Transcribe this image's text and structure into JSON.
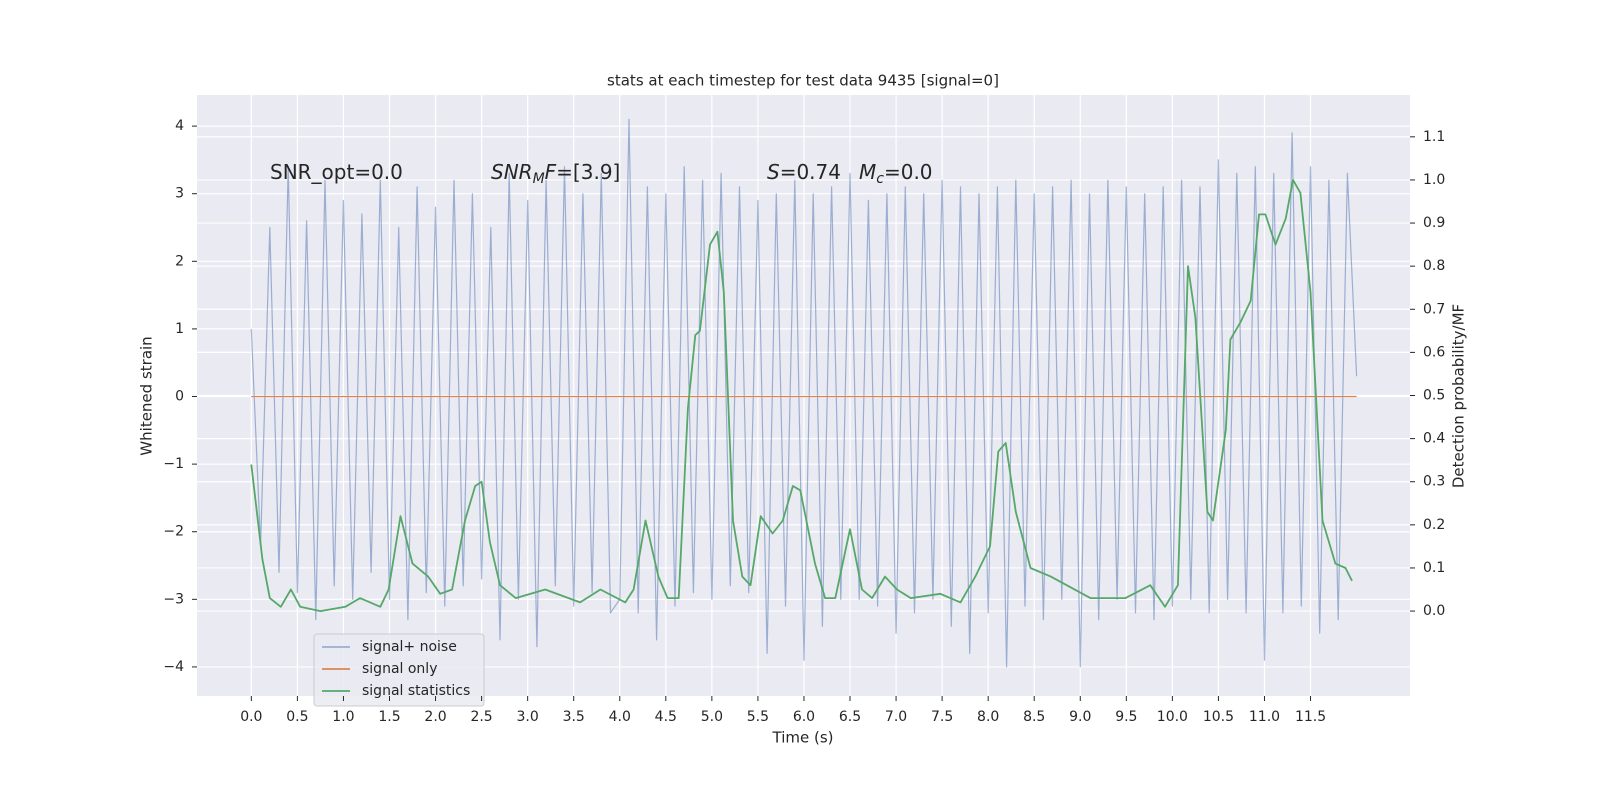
{
  "chart_data": {
    "type": "line",
    "title": "stats at each timestep for test data 9435 [signal=0]",
    "xlabel": "Time (s)",
    "ylabel": "Whitened strain",
    "y2label": "Detection probability/MF",
    "annotations": [
      [
        {
          "text": "SNR_opt=0.0"
        }
      ],
      [
        {
          "text": "SNR",
          "italic": true
        },
        {
          "text": "M",
          "italic": true,
          "sub": true
        },
        {
          "text": "F",
          "italic": true
        },
        {
          "text": "=[3.9]"
        }
      ],
      [
        {
          "text": "S",
          "italic": true
        },
        {
          "text": "=0.74"
        }
      ],
      [
        {
          "text": "M",
          "italic": true
        },
        {
          "text": "c",
          "italic": true,
          "sub": true
        },
        {
          "text": "=0.0"
        }
      ]
    ],
    "xlim": [
      -0.59,
      12.58
    ],
    "ylim": [
      -4.43,
      4.46
    ],
    "y2lim": [
      -0.197,
      1.197
    ],
    "xticks": [
      {
        "value": 0,
        "label": "0.0"
      },
      0.5,
      {
        "value": 1,
        "label": "1.0"
      },
      1.5,
      {
        "value": 2,
        "label": "2.0"
      },
      2.5,
      {
        "value": 3,
        "label": "3.0"
      },
      3.5,
      {
        "value": 4,
        "label": "4.0"
      },
      4.5,
      {
        "value": 5,
        "label": "5.0"
      },
      5.5,
      {
        "value": 6,
        "label": "6.0"
      },
      6.5,
      {
        "value": 7,
        "label": "7.0"
      },
      7.5,
      {
        "value": 8,
        "label": "8.0"
      },
      8.5,
      {
        "value": 9,
        "label": "9.0"
      },
      9.5,
      {
        "value": 10,
        "label": "10.0"
      },
      10.5,
      {
        "value": 11,
        "label": "11.0"
      },
      11.5
    ],
    "yticks": [
      {
        "value": -4,
        "label": "−4"
      },
      {
        "value": -3,
        "label": "−3"
      },
      {
        "value": -2,
        "label": "−2"
      },
      {
        "value": -1,
        "label": "−1"
      },
      0,
      1,
      2,
      3,
      4
    ],
    "y2ticks": [
      {
        "value": 0,
        "label": "0.0"
      },
      0.1,
      0.2,
      0.3,
      0.4,
      0.5,
      0.6,
      0.7,
      0.8,
      0.9,
      {
        "value": 1,
        "label": "1.0"
      },
      1.1
    ],
    "grid": true,
    "legend": "lower left",
    "series": [
      {
        "name": "signal+ noise",
        "color": "#4c72b0",
        "opacity": 0.5,
        "x": [
          0,
          0.1,
          0.2,
          0.3,
          0.4,
          0.5,
          0.6,
          0.7,
          0.8,
          0.9,
          1,
          1.1,
          1.2,
          1.3,
          1.4,
          1.5,
          1.6,
          1.7,
          1.8,
          1.9,
          2,
          2.1,
          2.2,
          2.3,
          2.4,
          2.5,
          2.6,
          2.7,
          2.8,
          2.9,
          3,
          3.1,
          3.2,
          3.3,
          3.4,
          3.5,
          3.6,
          3.7,
          3.8,
          3.9,
          4,
          4.1,
          4.2,
          4.3,
          4.4,
          4.5,
          4.6,
          4.7,
          4.8,
          4.9,
          5,
          5.1,
          5.2,
          5.3,
          5.4,
          5.5,
          5.6,
          5.7,
          5.8,
          5.9,
          6,
          6.1,
          6.2,
          6.3,
          6.4,
          6.5,
          6.6,
          6.7,
          6.8,
          6.9,
          7,
          7.1,
          7.2,
          7.3,
          7.4,
          7.5,
          7.6,
          7.7,
          7.8,
          7.9,
          8,
          8.1,
          8.2,
          8.3,
          8.4,
          8.5,
          8.6,
          8.7,
          8.8,
          8.9,
          9,
          9.1,
          9.2,
          9.3,
          9.4,
          9.5,
          9.6,
          9.7,
          9.8,
          9.9,
          10,
          10.1,
          10.2,
          10.3,
          10.4,
          10.5,
          10.6,
          10.7,
          10.8,
          10.9,
          11,
          11.1,
          11.2,
          11.3,
          11.4,
          11.5,
          11.6,
          11.7,
          11.8,
          11.9,
          12
        ],
        "values": [
          1.0,
          -2.2,
          2.5,
          -2.6,
          3.4,
          -2.9,
          2.6,
          -3.3,
          3.2,
          -2.8,
          2.9,
          -3.0,
          2.7,
          -2.6,
          3.2,
          -3.0,
          2.5,
          -3.3,
          3.1,
          -2.9,
          2.8,
          -3.1,
          3.2,
          -2.8,
          3.0,
          -2.7,
          2.5,
          -3.6,
          3.3,
          -3.0,
          2.9,
          -3.7,
          3.2,
          -2.8,
          3.4,
          -3.1,
          3.0,
          -2.9,
          3.3,
          -3.2,
          -3.0,
          4.1,
          -3.2,
          3.1,
          -3.6,
          3.0,
          -3.1,
          3.4,
          -2.9,
          3.2,
          -3.0,
          3.3,
          -2.8,
          3.1,
          -2.9,
          2.9,
          -3.8,
          3.0,
          -3.1,
          3.2,
          -3.9,
          3.0,
          -3.4,
          3.1,
          -3.0,
          3.3,
          -3.0,
          2.9,
          -3.1,
          3.0,
          -3.5,
          3.1,
          -3.2,
          3.0,
          -3.0,
          3.2,
          -3.4,
          3.1,
          -3.8,
          3.0,
          -3.2,
          3.1,
          -4.0,
          3.2,
          -3.1,
          3.0,
          -3.3,
          3.1,
          -3.0,
          3.2,
          -4.0,
          3.0,
          -3.3,
          3.2,
          -3.0,
          3.1,
          -3.2,
          3.0,
          -3.3,
          3.1,
          -3.1,
          3.2,
          -3.0,
          3.1,
          -3.2,
          3.5,
          -3.0,
          3.3,
          -3.2,
          3.4,
          -3.9,
          3.3,
          -3.2,
          3.9,
          -3.1,
          3.4,
          -3.5,
          3.2,
          -3.3,
          3.3,
          0.3
        ]
      },
      {
        "name": "signal only",
        "color": "#dd8452",
        "x": [
          0,
          12
        ],
        "values": [
          0,
          0
        ]
      },
      {
        "name": "signal statistics",
        "color": "#55a868",
        "axis": "y2",
        "x": [
          0,
          0.12,
          0.2,
          0.32,
          0.43,
          0.53,
          0.75,
          1.02,
          1.18,
          1.4,
          1.49,
          1.62,
          1.75,
          1.92,
          2.05,
          2.18,
          2.32,
          2.43,
          2.5,
          2.59,
          2.7,
          2.87,
          3.19,
          3.57,
          3.79,
          4.06,
          4.15,
          4.28,
          4.42,
          4.52,
          4.64,
          4.74,
          4.82,
          4.87,
          4.98,
          5.06,
          5.13,
          5.23,
          5.33,
          5.42,
          5.53,
          5.66,
          5.77,
          5.88,
          5.96,
          6.12,
          6.23,
          6.34,
          6.5,
          6.63,
          6.74,
          6.88,
          7.01,
          7.16,
          7.48,
          7.7,
          7.86,
          8.02,
          8.11,
          8.19,
          8.3,
          8.46,
          8.68,
          9.11,
          9.49,
          9.76,
          9.92,
          10.06,
          10.17,
          10.25,
          10.38,
          10.44,
          10.58,
          10.63,
          10.74,
          10.85,
          10.94,
          11.01,
          11.12,
          11.23,
          11.31,
          11.39,
          11.5,
          11.63,
          11.77,
          11.88,
          11.95
        ],
        "values": [
          0.34,
          0.12,
          0.03,
          0.01,
          0.05,
          0.01,
          0.0,
          0.01,
          0.03,
          0.01,
          0.05,
          0.22,
          0.11,
          0.08,
          0.04,
          0.05,
          0.21,
          0.29,
          0.3,
          0.16,
          0.06,
          0.03,
          0.05,
          0.02,
          0.05,
          0.02,
          0.05,
          0.21,
          0.08,
          0.03,
          0.03,
          0.47,
          0.64,
          0.65,
          0.85,
          0.88,
          0.74,
          0.21,
          0.08,
          0.06,
          0.22,
          0.18,
          0.21,
          0.29,
          0.28,
          0.11,
          0.03,
          0.03,
          0.19,
          0.05,
          0.03,
          0.08,
          0.05,
          0.03,
          0.04,
          0.02,
          0.08,
          0.15,
          0.37,
          0.39,
          0.23,
          0.1,
          0.08,
          0.03,
          0.03,
          0.06,
          0.01,
          0.06,
          0.8,
          0.68,
          0.23,
          0.21,
          0.42,
          0.63,
          0.67,
          0.72,
          0.92,
          0.92,
          0.85,
          0.91,
          1.0,
          0.97,
          0.74,
          0.21,
          0.11,
          0.1,
          0.07
        ]
      }
    ]
  }
}
